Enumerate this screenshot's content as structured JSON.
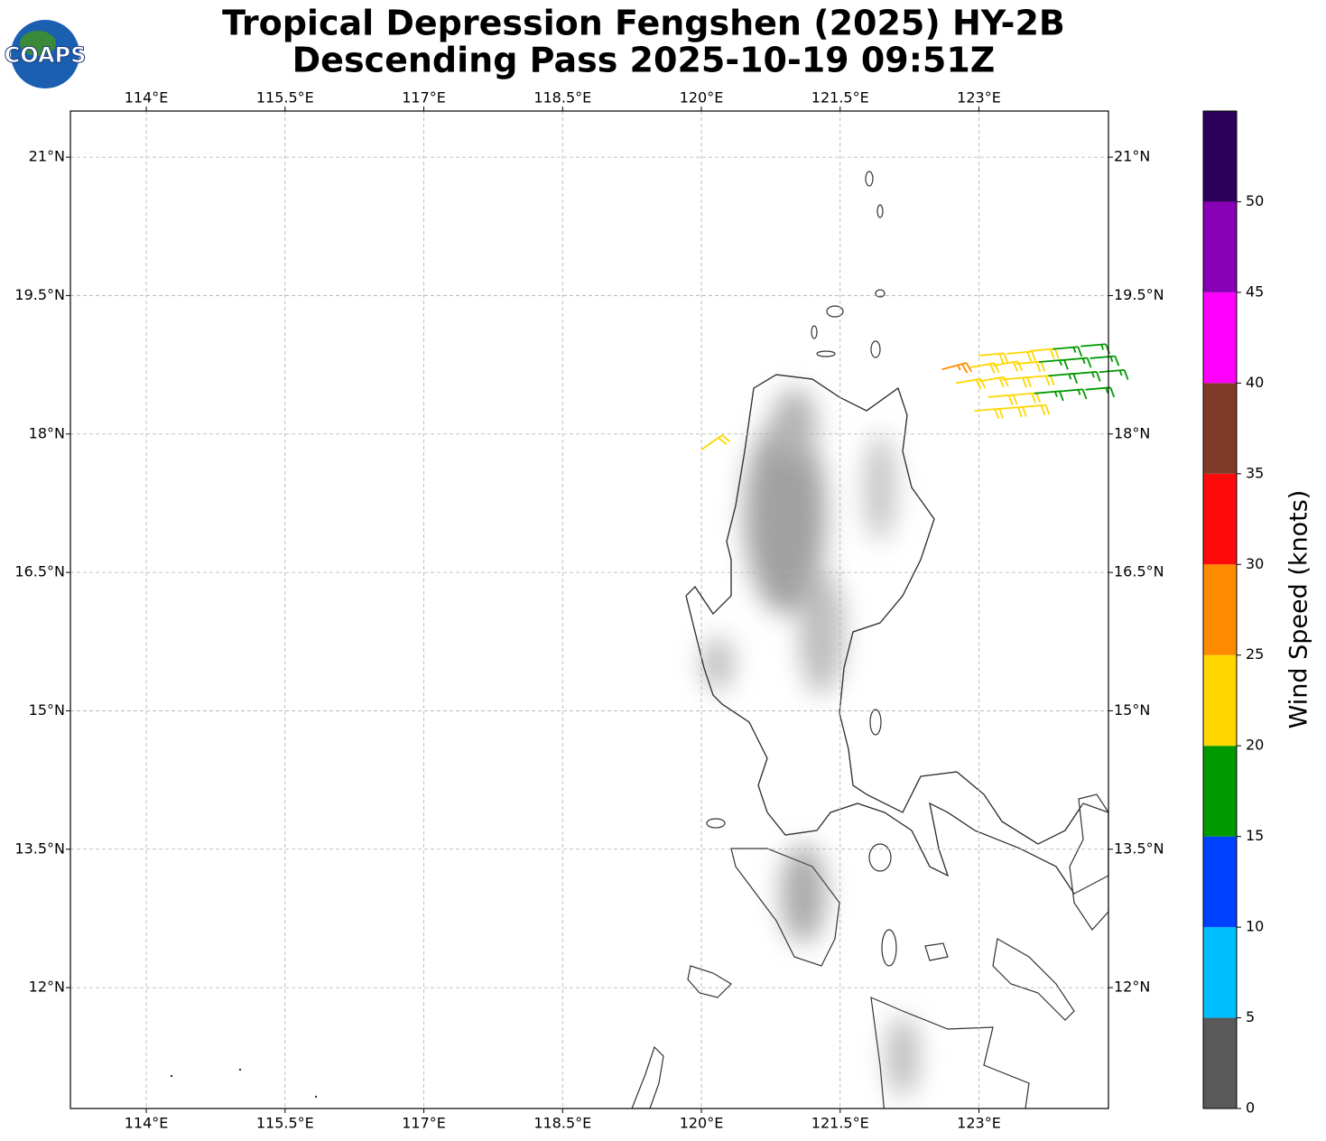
{
  "chart_data": {
    "type": "barbs",
    "title": [
      "Tropical Depression Fengshen (2025) HY-2B",
      "Descending Pass 2025-10-19 09:51Z"
    ],
    "logo": "COAPS",
    "xlim": [
      113.18,
      124.4
    ],
    "ylim": [
      10.69,
      21.5
    ],
    "xticks": [
      {
        "value": 114,
        "label": "114°E"
      },
      {
        "value": 115.5,
        "label": "115.5°E"
      },
      {
        "value": 117,
        "label": "117°E"
      },
      {
        "value": 118.5,
        "label": "118.5°E"
      },
      {
        "value": 120,
        "label": "120°E"
      },
      {
        "value": 121.5,
        "label": "121.5°E"
      },
      {
        "value": 123,
        "label": "123°E"
      }
    ],
    "yticks": [
      {
        "value": 21,
        "label": "21°N"
      },
      {
        "value": 19.5,
        "label": "19.5°N"
      },
      {
        "value": 18,
        "label": "18°N"
      },
      {
        "value": 16.5,
        "label": "16.5°N"
      },
      {
        "value": 15,
        "label": "15°N"
      },
      {
        "value": 13.5,
        "label": "13.5°N"
      },
      {
        "value": 12,
        "label": "12°N"
      }
    ],
    "grid": true,
    "colorbar": {
      "label": "Wind Speed (knots)",
      "bounds": [
        0,
        5,
        10,
        15,
        20,
        25,
        30,
        35,
        40,
        45,
        50,
        55
      ],
      "colors": [
        "#595959",
        "#00bfff",
        "#0040ff",
        "#009900",
        "#ffd700",
        "#ff8c00",
        "#ff0a0a",
        "#7f3b28",
        "#ff00ff",
        "#8800b5",
        "#2d005a"
      ],
      "ticks": [
        0,
        5,
        10,
        15,
        20,
        25,
        30,
        35,
        40,
        45,
        50
      ]
    },
    "barbs": [
      {
        "lon": 123.0,
        "lat": 18.85,
        "speed": 22,
        "direction": 85
      },
      {
        "lon": 123.3,
        "lat": 18.87,
        "speed": 22,
        "direction": 85
      },
      {
        "lon": 123.55,
        "lat": 18.9,
        "speed": 22,
        "direction": 85
      },
      {
        "lon": 123.8,
        "lat": 18.92,
        "speed": 17,
        "direction": 85
      },
      {
        "lon": 124.1,
        "lat": 18.95,
        "speed": 17,
        "direction": 85
      },
      {
        "lon": 122.6,
        "lat": 18.7,
        "speed": 27,
        "direction": 75
      },
      {
        "lon": 122.9,
        "lat": 18.72,
        "speed": 22,
        "direction": 80
      },
      {
        "lon": 123.15,
        "lat": 18.74,
        "speed": 22,
        "direction": 80
      },
      {
        "lon": 123.4,
        "lat": 18.76,
        "speed": 22,
        "direction": 85
      },
      {
        "lon": 123.65,
        "lat": 18.78,
        "speed": 17,
        "direction": 85
      },
      {
        "lon": 123.9,
        "lat": 18.8,
        "speed": 17,
        "direction": 85
      },
      {
        "lon": 124.2,
        "lat": 18.82,
        "speed": 17,
        "direction": 85
      },
      {
        "lon": 122.75,
        "lat": 18.55,
        "speed": 22,
        "direction": 80
      },
      {
        "lon": 123.0,
        "lat": 18.57,
        "speed": 22,
        "direction": 80
      },
      {
        "lon": 123.25,
        "lat": 18.59,
        "speed": 22,
        "direction": 85
      },
      {
        "lon": 123.5,
        "lat": 18.61,
        "speed": 22,
        "direction": 85
      },
      {
        "lon": 123.75,
        "lat": 18.63,
        "speed": 17,
        "direction": 85
      },
      {
        "lon": 124.0,
        "lat": 18.65,
        "speed": 17,
        "direction": 85
      },
      {
        "lon": 124.3,
        "lat": 18.67,
        "speed": 17,
        "direction": 85
      },
      {
        "lon": 123.1,
        "lat": 18.4,
        "speed": 22,
        "direction": 85
      },
      {
        "lon": 123.35,
        "lat": 18.42,
        "speed": 22,
        "direction": 85
      },
      {
        "lon": 123.6,
        "lat": 18.44,
        "speed": 17,
        "direction": 85
      },
      {
        "lon": 123.85,
        "lat": 18.46,
        "speed": 17,
        "direction": 85
      },
      {
        "lon": 124.15,
        "lat": 18.48,
        "speed": 17,
        "direction": 85
      },
      {
        "lon": 122.95,
        "lat": 18.25,
        "speed": 22,
        "direction": 85
      },
      {
        "lon": 123.2,
        "lat": 18.27,
        "speed": 22,
        "direction": 85
      },
      {
        "lon": 123.45,
        "lat": 18.29,
        "speed": 22,
        "direction": 85
      },
      {
        "lon": 120.0,
        "lat": 17.83,
        "speed": 22,
        "direction": 55
      }
    ]
  }
}
